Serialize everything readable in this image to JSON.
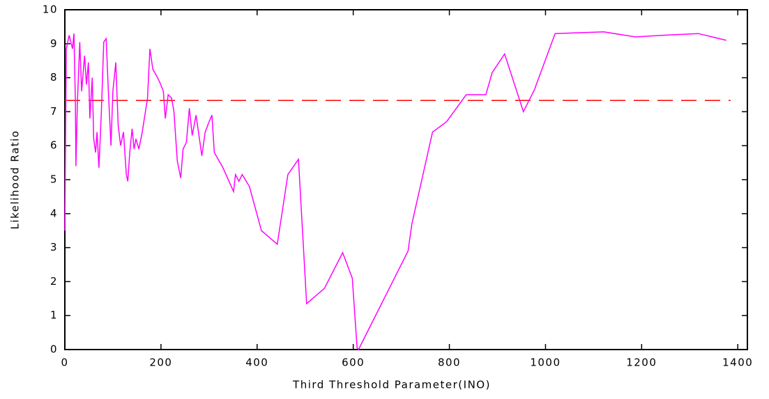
{
  "chart_data": {
    "type": "line",
    "xlabel": "Third Threshold Parameter(INO)",
    "ylabel": "Likelihood Ratio",
    "x": [
      0,
      3,
      9,
      16,
      19,
      22,
      23,
      26,
      31,
      35,
      41,
      45,
      49,
      52,
      57,
      60,
      64,
      67,
      71,
      76,
      81,
      86,
      90,
      96,
      100,
      106,
      111,
      116,
      122,
      128,
      131,
      135,
      140,
      144,
      148,
      154,
      161,
      172,
      177,
      183,
      191,
      198,
      205,
      209,
      215,
      222,
      227,
      234,
      241,
      246,
      253,
      259,
      265,
      273,
      279,
      285,
      292,
      300,
      306,
      311,
      329,
      351,
      355,
      362,
      369,
      384,
      409,
      442,
      464,
      486,
      503,
      540,
      578,
      598,
      608,
      611,
      714,
      722,
      765,
      794,
      835,
      876,
      889,
      915,
      954,
      977,
      1020,
      1121,
      1187,
      1245,
      1318,
      1376
    ],
    "series": [
      {
        "color": "#ff00ff",
        "values": [
          3.5,
          8.85,
          9.25,
          8.85,
          9.3,
          7.2,
          5.4,
          7.2,
          9.05,
          7.6,
          8.65,
          7.8,
          8.45,
          6.8,
          8.0,
          6.2,
          5.8,
          6.4,
          5.35,
          7.0,
          9.05,
          9.15,
          7.8,
          6.0,
          7.6,
          8.45,
          6.6,
          6.0,
          6.4,
          5.15,
          4.95,
          5.8,
          6.5,
          5.9,
          6.2,
          5.9,
          6.4,
          7.4,
          8.85,
          8.25,
          8.05,
          7.85,
          7.6,
          6.8,
          7.5,
          7.4,
          7.0,
          5.55,
          5.05,
          5.9,
          6.1,
          7.1,
          6.3,
          6.9,
          6.3,
          5.7,
          6.4,
          6.7,
          6.9,
          5.8,
          5.35,
          4.65,
          5.15,
          4.95,
          5.15,
          4.8,
          3.5,
          3.1,
          5.15,
          5.6,
          1.35,
          1.8,
          2.85,
          2.1,
          0.05,
          0,
          2.9,
          3.7,
          6.4,
          6.7,
          7.5,
          7.5,
          8.15,
          8.7,
          7.0,
          7.65,
          9.3,
          9.35,
          9.2,
          9.25,
          9.3,
          9.1
        ]
      }
    ],
    "reference_line": {
      "y": 7.33,
      "x": [
        0,
        1385
      ],
      "color": "#ff0000",
      "dashed": true
    },
    "xlim": [
      0,
      1420
    ],
    "xticks": [
      0,
      200,
      400,
      600,
      800,
      1000,
      1200,
      1400
    ],
    "ylim": [
      0,
      10
    ],
    "yticks": [
      0,
      1,
      2,
      3,
      4,
      5,
      6,
      7,
      8,
      9,
      10
    ]
  }
}
